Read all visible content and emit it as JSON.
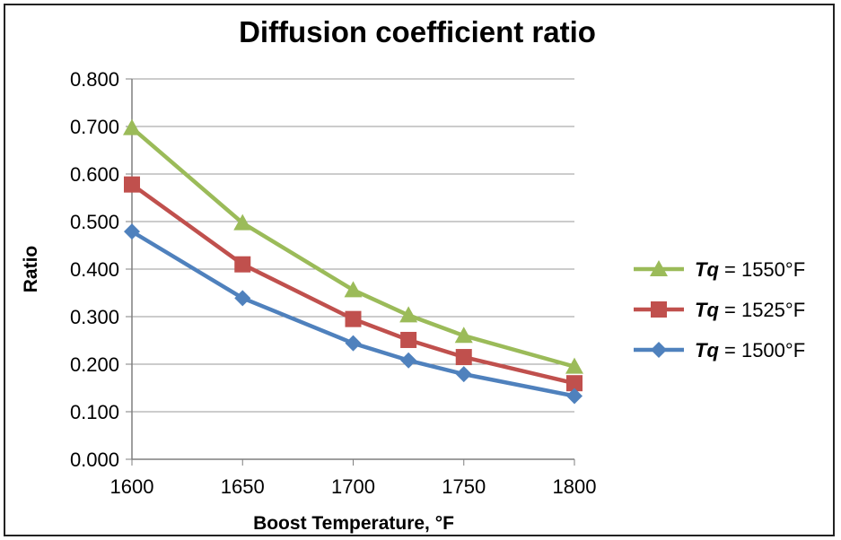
{
  "chart_data": {
    "type": "line",
    "title": "Diffusion coefficient ratio",
    "xlabel": "Boost Temperature, °F",
    "ylabel": "Ratio",
    "x": [
      1600,
      1650,
      1700,
      1725,
      1750,
      1800
    ],
    "xticks": [
      "1600",
      "1650",
      "1700",
      "1750",
      "1800"
    ],
    "xlim": [
      1600,
      1800
    ],
    "yticks": [
      "0.000",
      "0.100",
      "0.200",
      "0.300",
      "0.400",
      "0.500",
      "0.600",
      "0.700",
      "0.800"
    ],
    "ylim": [
      0,
      0.8
    ],
    "grid": "horizontal",
    "legend_position": "right",
    "series": [
      {
        "name_symbol": "Tq",
        "name_value": " = 1550°F",
        "color": "#9bbb59",
        "marker": "triangle",
        "values": [
          0.697,
          0.497,
          0.356,
          0.303,
          0.26,
          0.195
        ]
      },
      {
        "name_symbol": "Tq",
        "name_value": " = 1525°F",
        "color": "#c0504d",
        "marker": "square",
        "values": [
          0.578,
          0.41,
          0.295,
          0.251,
          0.215,
          0.16
        ]
      },
      {
        "name_symbol": "Tq",
        "name_value": " = 1500°F",
        "color": "#4f81bd",
        "marker": "diamond",
        "values": [
          0.479,
          0.339,
          0.244,
          0.208,
          0.179,
          0.133
        ]
      }
    ]
  }
}
